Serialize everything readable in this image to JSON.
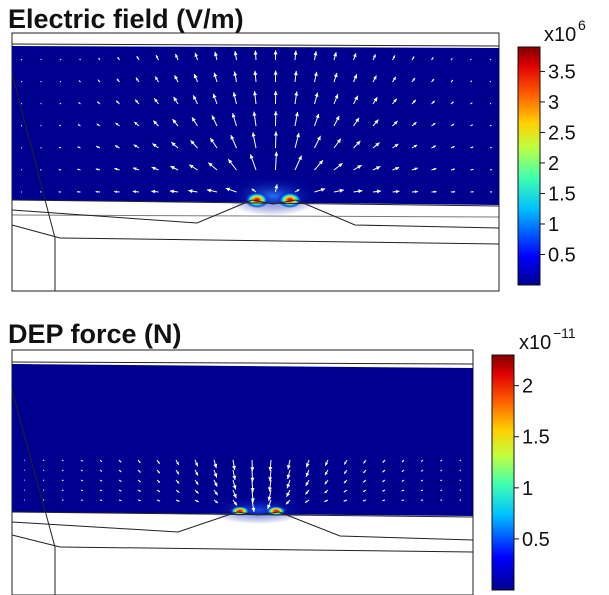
{
  "panels": [
    {
      "title": "Electric field (V/m)",
      "colorbar": {
        "multiplier_base": "x10",
        "multiplier_exp": "6",
        "ticks": [
          {
            "label": "3.5",
            "value": 3.5
          },
          {
            "label": "3",
            "value": 3.0
          },
          {
            "label": "2.5",
            "value": 2.5
          },
          {
            "label": "2",
            "value": 2.0
          },
          {
            "label": "1.5",
            "value": 1.5
          },
          {
            "label": "1",
            "value": 1.0
          },
          {
            "label": "0.5",
            "value": 0.5
          }
        ],
        "min": 0.0,
        "max": 3.9
      }
    },
    {
      "title": "DEP force (N)",
      "colorbar": {
        "multiplier_base": "x10",
        "multiplier_exp": "−11",
        "ticks": [
          {
            "label": "2",
            "value": 2.0
          },
          {
            "label": "1.5",
            "value": 1.5
          },
          {
            "label": "1",
            "value": 1.0
          },
          {
            "label": "0.5",
            "value": 0.5
          }
        ],
        "min": 0.0,
        "max": 2.3
      }
    }
  ],
  "colors": {
    "field_background": "#00008f",
    "hotspot_core": "#b40000"
  }
}
